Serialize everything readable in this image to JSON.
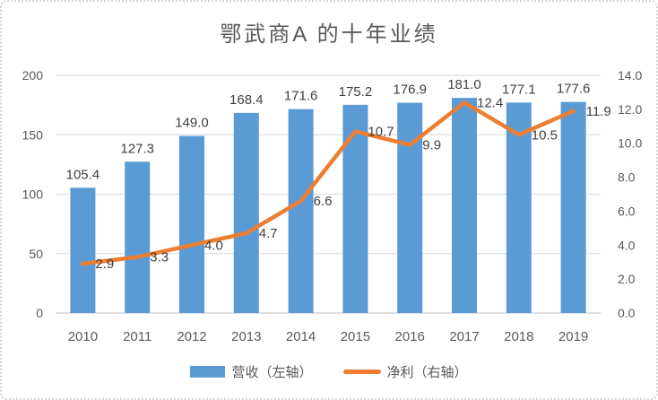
{
  "frame": {
    "background": "#ffffff",
    "border_color": "#d4d4d4"
  },
  "chart_data": {
    "type": "combo-bar-line",
    "title": "鄂武商A 的十年业绩",
    "categories": [
      "2010",
      "2011",
      "2012",
      "2013",
      "2014",
      "2015",
      "2016",
      "2017",
      "2018",
      "2019"
    ],
    "series": [
      {
        "name": "营收（左轴）",
        "chart_type": "bar",
        "axis": "left",
        "color": "#5B9BD5",
        "values": [
          105.4,
          127.3,
          149.0,
          168.4,
          171.6,
          175.2,
          176.9,
          181.0,
          177.1,
          177.6
        ],
        "data_labels": [
          "105.4",
          "127.3",
          "149.0",
          "168.4",
          "171.6",
          "175.2",
          "176.9",
          "181.0",
          "177.1",
          "177.6"
        ]
      },
      {
        "name": "净利（右轴）",
        "chart_type": "line",
        "axis": "right",
        "color": "#ED7D31",
        "values": [
          2.9,
          3.3,
          4.0,
          4.7,
          6.6,
          10.7,
          9.9,
          12.4,
          10.5,
          11.9
        ],
        "data_labels": [
          "2.9",
          "3.3",
          "4.0",
          "4.7",
          "6.6",
          "10.7",
          "9.9",
          "12.4",
          "10.5",
          "11.9"
        ]
      }
    ],
    "left_axis": {
      "min": 0,
      "max": 200,
      "tick_labels": [
        "0",
        "50",
        "100",
        "150",
        "200"
      ]
    },
    "right_axis": {
      "min": 0,
      "max": 14,
      "tick_labels": [
        "0.0",
        "2.0",
        "4.0",
        "6.0",
        "8.0",
        "10.0",
        "12.0",
        "14.0"
      ]
    },
    "grid": true,
    "legend_position": "bottom",
    "colors": {
      "grid": "#D9D9D9",
      "axis_line": "#BFBFBF",
      "tick_text": "#595959",
      "data_label_text": "#404040",
      "title_text": "#595959"
    }
  }
}
